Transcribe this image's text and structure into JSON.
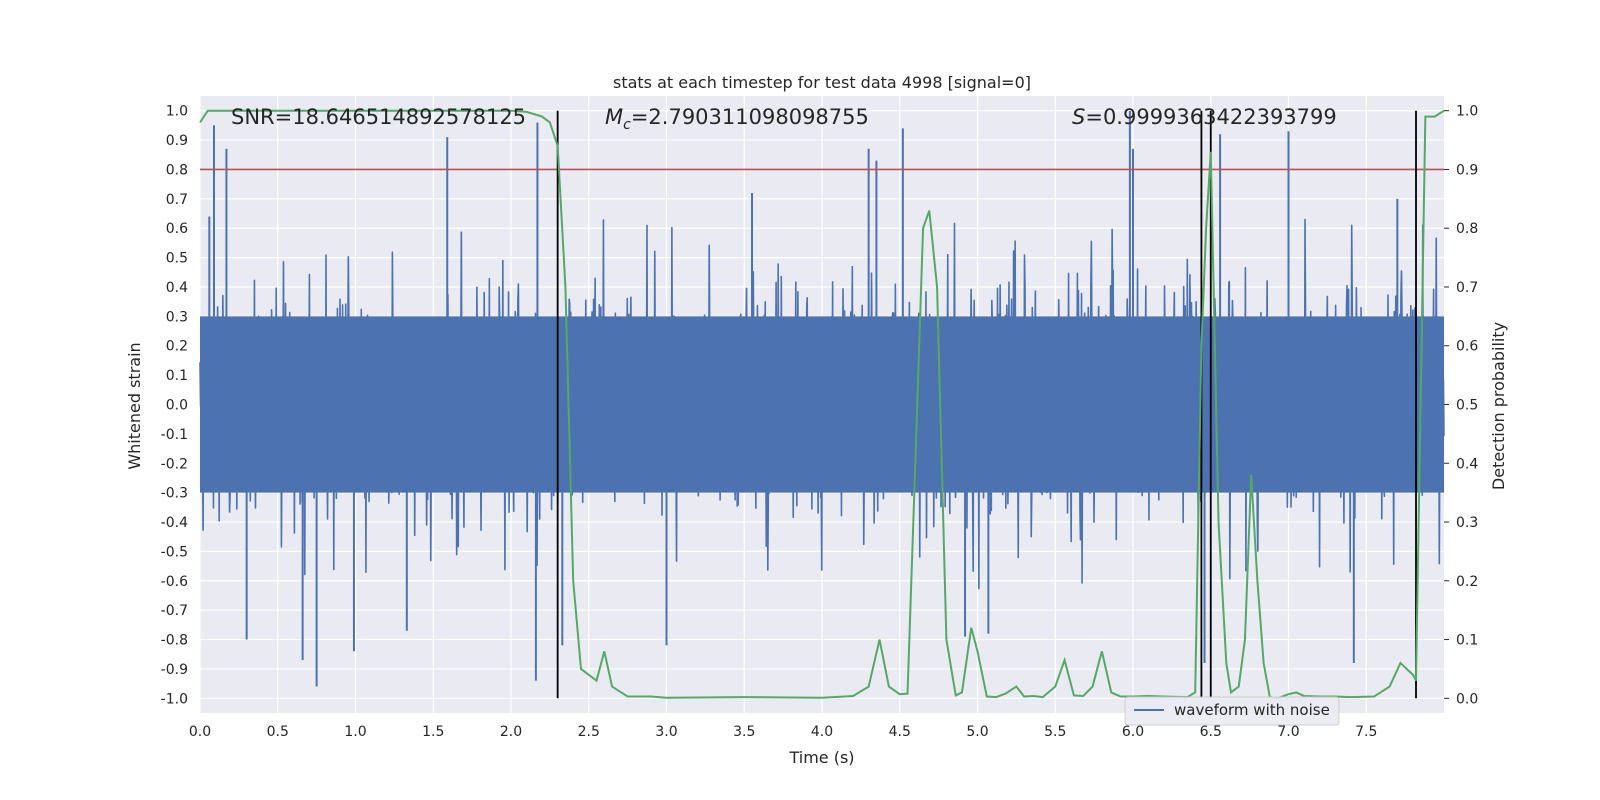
{
  "chart_data": {
    "type": "line",
    "title": "stats at each timestep for test data 4998 [signal=0]",
    "xlabel": "Time (s)",
    "ylabel": "Whitened strain",
    "y2label": "Detection probability",
    "xlim": [
      0.0,
      8.0
    ],
    "ylim": [
      -1.05,
      1.05
    ],
    "y2lim": [
      -0.025,
      1.025
    ],
    "xticks": [
      "0.0",
      "0.5",
      "1.0",
      "1.5",
      "2.0",
      "2.5",
      "3.0",
      "3.5",
      "4.0",
      "4.5",
      "5.0",
      "5.5",
      "6.0",
      "6.5",
      "7.0",
      "7.5"
    ],
    "yticks": [
      "-1.0",
      "-0.9",
      "-0.8",
      "-0.7",
      "-0.6",
      "-0.5",
      "-0.4",
      "-0.3",
      "-0.2",
      "-0.1",
      "0.0",
      "0.1",
      "0.2",
      "0.3",
      "0.4",
      "0.5",
      "0.6",
      "0.7",
      "0.8",
      "0.9",
      "1.0"
    ],
    "y2ticks": [
      "0.0",
      "0.1",
      "0.2",
      "0.3",
      "0.4",
      "0.5",
      "0.6",
      "0.7",
      "0.8",
      "0.9",
      "1.0"
    ],
    "annotations": {
      "snr": "SNR=18.646514892578125",
      "mc_symbol": "M",
      "mc_sub": "c",
      "mc_value": "=2.790311098098755",
      "s_symbol": "S",
      "s_value": "=0.9999363422393799"
    },
    "legend": {
      "entries": [
        "waveform with noise"
      ],
      "placement": "lower-right"
    },
    "threshold": {
      "axis": "secondary",
      "value": 0.9,
      "color": "#c44e52"
    },
    "event_lines": [
      2.3,
      6.44,
      6.5,
      7.82
    ],
    "series": [
      {
        "name": "waveform with noise",
        "color": "#4c72b0",
        "kind": "noise-waveform",
        "n_samples": 2400,
        "envelope": 0.35,
        "seed": 4998,
        "spikes": [
          {
            "x": 0.06,
            "y": 0.64
          },
          {
            "x": 0.09,
            "y": 0.95
          },
          {
            "x": 0.17,
            "y": 0.87
          },
          {
            "x": 0.75,
            "y": -0.96
          },
          {
            "x": 0.66,
            "y": -0.87
          },
          {
            "x": 0.99,
            "y": -0.84
          },
          {
            "x": 1.59,
            "y": 0.91
          },
          {
            "x": 2.17,
            "y": 0.96
          },
          {
            "x": 2.16,
            "y": -0.94
          },
          {
            "x": 4.3,
            "y": 0.87
          },
          {
            "x": 4.35,
            "y": 0.83
          },
          {
            "x": 4.52,
            "y": 0.94
          },
          {
            "x": 5.98,
            "y": 1.0
          },
          {
            "x": 6.56,
            "y": 0.92
          },
          {
            "x": 6.46,
            "y": -0.88
          },
          {
            "x": 7.0,
            "y": 0.93
          },
          {
            "x": 7.42,
            "y": -0.88
          },
          {
            "x": 0.3,
            "y": -0.8
          },
          {
            "x": 3.0,
            "y": -0.82
          },
          {
            "x": 5.07,
            "y": -0.78
          },
          {
            "x": 4.92,
            "y": -0.79
          },
          {
            "x": 6.0,
            "y": 0.87
          },
          {
            "x": 1.33,
            "y": -0.77
          },
          {
            "x": 7.7,
            "y": 0.7
          },
          {
            "x": 3.55,
            "y": 0.72
          },
          {
            "x": 2.33,
            "y": -0.82
          }
        ]
      },
      {
        "name": "detection probability",
        "color": "#55a868",
        "axis": "secondary",
        "x": [
          0.0,
          0.05,
          0.1,
          0.3,
          0.6,
          1.0,
          1.5,
          2.0,
          2.1,
          2.2,
          2.25,
          2.3,
          2.35,
          2.4,
          2.45,
          2.5,
          2.55,
          2.6,
          2.65,
          2.75,
          2.9,
          3.0,
          3.5,
          4.0,
          4.2,
          4.3,
          4.37,
          4.43,
          4.5,
          4.55,
          4.6,
          4.65,
          4.69,
          4.74,
          4.8,
          4.86,
          4.9,
          4.96,
          5.0,
          5.06,
          5.12,
          5.18,
          5.25,
          5.3,
          5.36,
          5.42,
          5.5,
          5.56,
          5.62,
          5.68,
          5.74,
          5.8,
          5.86,
          5.92,
          6.0,
          6.1,
          6.2,
          6.35,
          6.4,
          6.44,
          6.47,
          6.5,
          6.55,
          6.6,
          6.63,
          6.68,
          6.72,
          6.76,
          6.8,
          6.84,
          6.88,
          6.93,
          7.0,
          7.05,
          7.1,
          7.2,
          7.3,
          7.4,
          7.55,
          7.65,
          7.72,
          7.8,
          7.82,
          7.88,
          7.94,
          8.0
        ],
        "y": [
          0.98,
          1.0,
          1.0,
          1.0,
          1.0,
          1.0,
          1.0,
          1.0,
          0.998,
          0.99,
          0.98,
          0.94,
          0.7,
          0.2,
          0.05,
          0.04,
          0.03,
          0.08,
          0.02,
          0.003,
          0.003,
          0.001,
          0.002,
          0.001,
          0.004,
          0.02,
          0.1,
          0.02,
          0.007,
          0.008,
          0.4,
          0.8,
          0.83,
          0.7,
          0.1,
          0.005,
          0.01,
          0.12,
          0.08,
          0.003,
          0.002,
          0.008,
          0.02,
          0.003,
          0.004,
          0.002,
          0.02,
          0.065,
          0.005,
          0.004,
          0.02,
          0.08,
          0.01,
          0.003,
          0.003,
          0.004,
          0.003,
          0.002,
          0.01,
          0.6,
          0.8,
          0.93,
          0.3,
          0.06,
          0.01,
          0.02,
          0.1,
          0.38,
          0.2,
          0.06,
          0.002,
          0.0,
          0.007,
          0.01,
          0.004,
          0.003,
          0.003,
          0.002,
          0.003,
          0.02,
          0.06,
          0.04,
          0.03,
          0.99,
          0.99,
          1.0
        ]
      }
    ]
  }
}
